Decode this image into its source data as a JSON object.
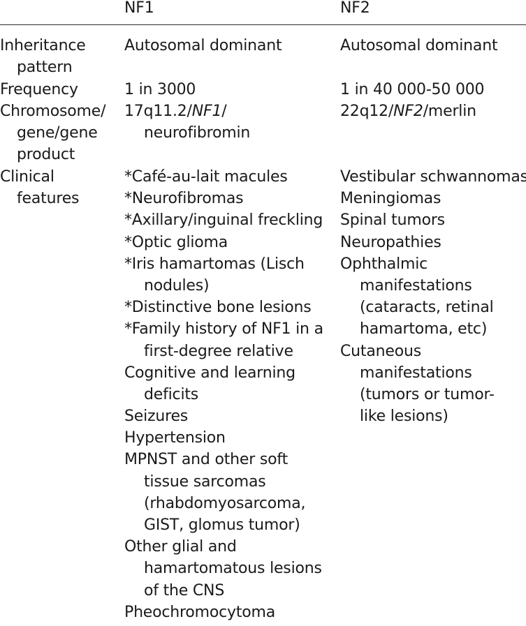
{
  "table": {
    "headers": {
      "col1": "",
      "col2": "NF1",
      "col3": "NF2"
    },
    "rows": [
      {
        "label": [
          "Inheritance",
          "pattern"
        ],
        "nf1": [
          "Autosomal dominant"
        ],
        "nf2": [
          "Autosomal dominant"
        ]
      },
      {
        "label": [
          "Frequency"
        ],
        "nf1": [
          "1 in 3000"
        ],
        "nf2": [
          "1 in 40 000-50 000"
        ]
      },
      {
        "label": [
          "Chromosome/",
          "gene/gene",
          "product"
        ],
        "nf1": {
          "line1_prefix": "17q11.2/",
          "line1_italic": "NF1",
          "line1_suffix": "/",
          "line2": "neurofibromin"
        },
        "nf2": {
          "line1_prefix": "22q12/",
          "line1_italic": "NF2",
          "line1_suffix": "/merlin"
        }
      },
      {
        "label": [
          "Clinical",
          "features"
        ],
        "nf1": [
          "*Café-au-lait macules",
          "*Neurofibromas",
          "*Axillary/inguinal freckling",
          "*Optic glioma",
          "*Iris hamartomas (Lisch",
          "nodules)",
          "*Distinctive bone lesions",
          "*Family history of NF1 in a",
          "first-degree relative",
          "Cognitive and learning",
          "deficits",
          "Seizures",
          "Hypertension",
          "MPNST and other soft",
          "tissue sarcomas",
          "(rhabdomyosarcoma,",
          "GIST, glomus tumor)",
          "Other glial and",
          "hamartomatous lesions",
          "of the CNS",
          "Pheochromocytoma"
        ],
        "nf2": [
          "Vestibular schwannomas",
          "Meningiomas",
          "Spinal tumors",
          "Neuropathies",
          "Ophthalmic",
          "manifestations",
          "(cataracts, retinal",
          "hamartoma, etc)",
          "Cutaneous",
          "manifestations",
          "(tumors or tumor-",
          "like lesions)"
        ]
      }
    ]
  }
}
